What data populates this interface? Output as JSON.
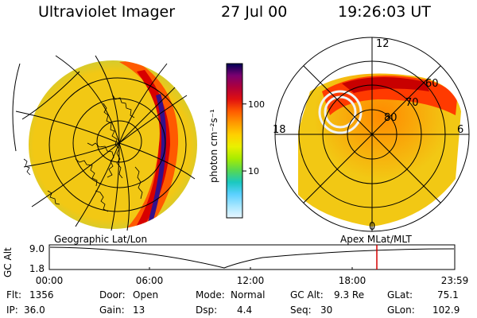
{
  "header": {
    "title": "Ultraviolet Imager",
    "date": "27 Jul 00",
    "time": "19:26:03 UT"
  },
  "colorbar": {
    "unit_label": "photon cm⁻²s⁻¹",
    "ticks": [
      {
        "label": "100",
        "value": 100
      },
      {
        "label": "10",
        "value": 10
      }
    ],
    "colors": [
      "#000055",
      "#7a0070",
      "#b0003a",
      "#e01010",
      "#ff5a00",
      "#ff9a00",
      "#ffd000",
      "#eaf000",
      "#a8ec00",
      "#58d850",
      "#1ac8c0",
      "#5ad0ff",
      "#a6e6ff",
      "#e8f6ff"
    ]
  },
  "left_map": {
    "label": "Geographic Lat/Lon",
    "colors": {
      "low": "#53d7a0",
      "mid": "#f2c814",
      "high": "#ff5a00",
      "peak": "#d70000",
      "edge": "#34108a"
    }
  },
  "right_map": {
    "label": "Apex MLat/MLT",
    "mlt_labels": [
      "12",
      "18",
      "6",
      "0"
    ],
    "mlat_labels": [
      "60",
      "70",
      "80"
    ],
    "colors": {
      "low": "#f2c814",
      "mid": "#ff8a00",
      "high": "#ff3a00",
      "peak": "#c80000",
      "ring": "#f2f2f2"
    }
  },
  "altitude_plot": {
    "ylabel": "GC Alt",
    "yticks": [
      "9.0",
      "1.8"
    ],
    "xticks": [
      "00:00",
      "06:00",
      "12:00",
      "18:00",
      "23:59"
    ],
    "marker_color": "#d40000"
  },
  "footer": {
    "flt_label": "Flt:",
    "flt": "1356",
    "ip_label": "IP:",
    "ip": "36.0",
    "door_label": "Door:",
    "door": "Open",
    "gain_label": "Gain:",
    "gain": "13",
    "mode_label": "Mode:",
    "mode": "Normal",
    "dsp_label": "Dsp:",
    "dsp": "4.4",
    "gcalt_label": "GC Alt:",
    "gcalt": "9.3 Re",
    "seq_label": "Seq:",
    "seq": "30",
    "glat_label": "GLat:",
    "glat": "75.1",
    "glon_label": "GLon:",
    "glon": "102.9"
  }
}
